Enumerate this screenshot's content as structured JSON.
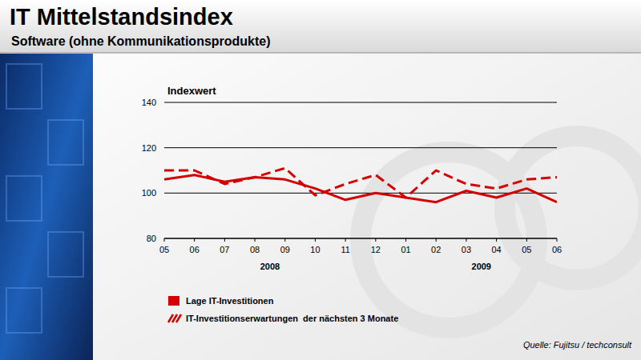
{
  "chart_data": {
    "type": "line",
    "title": "IT Mittelstandsindex",
    "subtitle": "Software (ohne Kommunikationsprodukte)",
    "y_label": "Indexwert",
    "source": "Quelle: Fujitsu / techconsult",
    "categories": [
      "05",
      "06",
      "07",
      "08",
      "09",
      "10",
      "11",
      "12",
      "01",
      "02",
      "03",
      "04",
      "05",
      "06"
    ],
    "x_groups": [
      {
        "label": "2008",
        "start": 0,
        "end": 7
      },
      {
        "label": "2009",
        "start": 8,
        "end": 13
      }
    ],
    "series": [
      {
        "name": "Lage IT-Investitionen",
        "color": "#d40000",
        "line_style": "solid",
        "values": [
          106,
          108,
          105,
          107,
          106,
          102,
          97,
          100,
          98,
          96,
          101,
          98,
          102,
          96
        ]
      },
      {
        "name": "IT-Investitionserwartungen  der nächsten 3 Monate",
        "color": "#d40000",
        "line_style": "dashed",
        "values": [
          110,
          110,
          104,
          107,
          111,
          99,
          104,
          108,
          98,
          110,
          104,
          102,
          106,
          107
        ]
      }
    ],
    "ylim": [
      80,
      140
    ],
    "yticks": [
      80,
      100,
      120,
      140
    ],
    "grid": true,
    "legend": "bottom"
  }
}
